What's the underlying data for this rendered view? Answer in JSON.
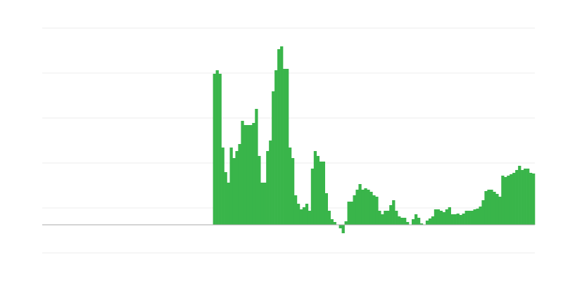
{
  "chart_data": {
    "type": "bar",
    "color": "#39b54a",
    "grid": true,
    "x": [
      0,
      1,
      2,
      3,
      4,
      5,
      6,
      7,
      8,
      9,
      10,
      11,
      12,
      13,
      14,
      15,
      16,
      17,
      18,
      19,
      20,
      21,
      22,
      23,
      24,
      25,
      26,
      27,
      28,
      29,
      30,
      31,
      32,
      33,
      34,
      35,
      36,
      37,
      38,
      39,
      40,
      41,
      42,
      43,
      44,
      45,
      46,
      47,
      48,
      49,
      50,
      51,
      52,
      53,
      54,
      55,
      56,
      57,
      58,
      59,
      60,
      61,
      62,
      63,
      64,
      65,
      66,
      67,
      68,
      69,
      70,
      71,
      72,
      73,
      74,
      75,
      76,
      77,
      78,
      79,
      80,
      81,
      82,
      83,
      84,
      85,
      86,
      87,
      88,
      89,
      90,
      91,
      92,
      93,
      94,
      95,
      96,
      97,
      98,
      99,
      100,
      101,
      102,
      103,
      104,
      105,
      106,
      107,
      108,
      109,
      110,
      111,
      112,
      113,
      114
    ],
    "values": [
      215,
      220,
      215,
      110,
      75,
      60,
      110,
      95,
      105,
      115,
      148,
      142,
      142,
      142,
      145,
      165,
      98,
      60,
      60,
      105,
      120,
      190,
      220,
      250,
      254,
      222,
      222,
      110,
      95,
      42,
      30,
      22,
      25,
      30,
      20,
      80,
      105,
      98,
      90,
      90,
      45,
      20,
      8,
      4,
      0,
      -5,
      -12,
      5,
      33,
      33,
      42,
      50,
      58,
      50,
      52,
      50,
      47,
      42,
      40,
      20,
      15,
      20,
      20,
      28,
      35,
      20,
      12,
      10,
      10,
      4,
      0,
      8,
      15,
      10,
      2,
      0,
      6,
      9,
      12,
      22,
      22,
      20,
      18,
      22,
      25,
      15,
      15,
      16,
      14,
      16,
      20,
      20,
      20,
      22,
      23,
      26,
      35,
      48,
      50,
      50,
      47,
      44,
      40,
      70,
      68,
      70,
      72,
      74,
      78,
      84,
      78,
      80,
      80,
      74,
      73
    ],
    "xlim": [
      -61,
      115
    ],
    "ylim": [
      -40,
      280
    ],
    "yticks": [
      -40,
      24,
      88,
      152,
      216,
      280
    ]
  }
}
